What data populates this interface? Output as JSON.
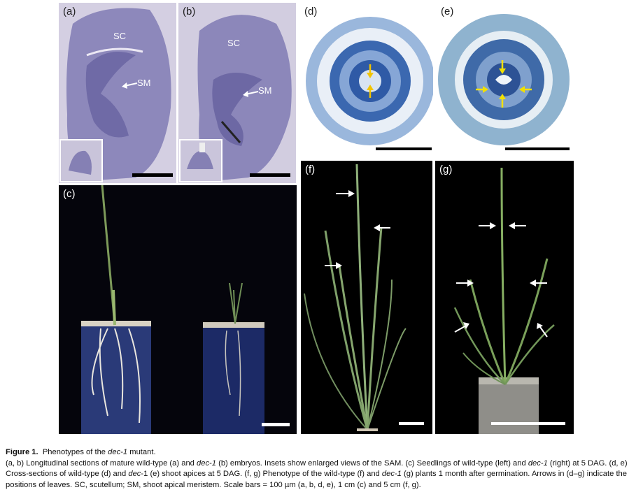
{
  "panels": {
    "a": {
      "label": "(a)",
      "sc": "SC",
      "sm": "SM"
    },
    "b": {
      "label": "(b)",
      "sc": "SC",
      "sm": "SM"
    },
    "c": {
      "label": "(c)"
    },
    "d": {
      "label": "(d)"
    },
    "e": {
      "label": "(e)"
    },
    "f": {
      "label": "(f)"
    },
    "g": {
      "label": "(g)"
    }
  },
  "caption": {
    "figure_label": "Figure 1.",
    "title_pre": "Phenotypes of the ",
    "title_italic": "dec-1",
    "title_post": " mutant.",
    "body": [
      {
        "t": "(a, b) Longitudinal sections of mature wild-type (a) and "
      },
      {
        "t": "dec-1",
        "i": true
      },
      {
        "t": " (b) embryos. Insets show enlarged views of the SAM. (c) Seedlings of wild-type (left) and "
      },
      {
        "t": "dec-1",
        "i": true
      },
      {
        "t": " (right) at 5 DAG. (d, e) Cross-sections of wild-type (d) and "
      },
      {
        "t": "dec",
        "i": true
      },
      {
        "t": "-1 (e) shoot apices at 5 DAG. (f, g) Phenotype of the wild-type (f) and "
      },
      {
        "t": "dec-1",
        "i": true
      },
      {
        "t": " (g) plants 1 month after germination. Arrows in (d–g) indicate the positions of leaves. SC, scutellum; SM, shoot apical meristem. Scale bars = 100 µm (a, b, d, e), 1 cm (c) and 5 cm (f, g)."
      }
    ]
  }
}
